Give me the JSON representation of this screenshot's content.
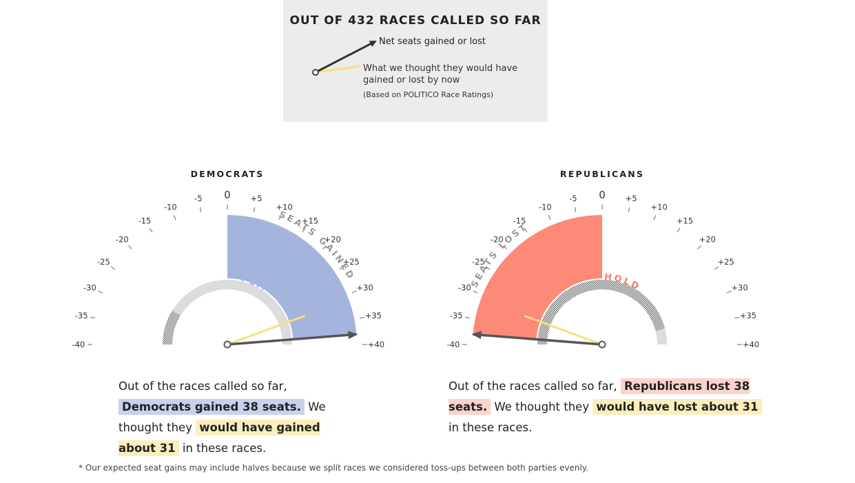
{
  "legend": {
    "title": "OUT OF 432 RACES CALLED SO FAR",
    "net_label": "Net seats gained or lost",
    "expected_label": "What we thought they would have gained or lost by now",
    "note": "(Based on POLITICO Race Ratings)"
  },
  "colors": {
    "dem_fill": "#a4b4dd",
    "rep_fill": "#fc8a76",
    "expected_needle": "#f9df7f",
    "net_needle": "#555555",
    "hold_arc": "#dcdcdc"
  },
  "chart_data": [
    {
      "type": "gauge",
      "title": "DEMOCRATS",
      "scale_min": -40,
      "scale_max": 40,
      "tick_labels": [
        "-40",
        "-35",
        "-30",
        "-25",
        "-20",
        "-15",
        "-10",
        "-5",
        "0",
        "+5",
        "+10",
        "+15",
        "+20",
        "+25",
        "+30",
        "+35",
        "+40"
      ],
      "arc_label": "SEATS GAINED",
      "hold_label": "FLIP",
      "net_seats": 38,
      "expected_seats": 31
    },
    {
      "type": "gauge",
      "title": "REPUBLICANS",
      "scale_min": -40,
      "scale_max": 40,
      "tick_labels": [
        "-40",
        "-35",
        "-30",
        "-25",
        "-20",
        "-15",
        "-10",
        "-5",
        "0",
        "+5",
        "+10",
        "+15",
        "+20",
        "+25",
        "+30",
        "+35",
        "+40"
      ],
      "arc_label": "SEATS LOST",
      "hold_label": "HOLD",
      "net_seats": -38,
      "expected_seats": -31
    }
  ],
  "dem_summary": {
    "part1": "Out of the races called so far,",
    "highlight_net": "Democrats gained 38 seats.",
    "part2": "We thought they",
    "highlight_expected": "would have gained about 31",
    "part3": "in these races."
  },
  "rep_summary": {
    "part1": "Out of the races called so far,",
    "highlight_net": "Republicans lost 38 seats.",
    "part2": "We thought they",
    "highlight_expected": "would have lost about 31",
    "part3": "in these races."
  },
  "footnote": "* Our expected seat gains may include halves because we split races we considered toss-ups between both parties evenly."
}
